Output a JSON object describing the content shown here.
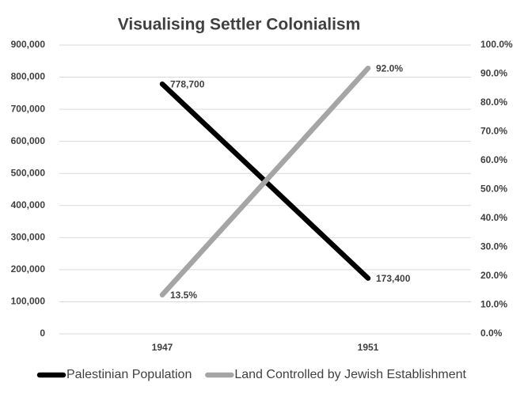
{
  "chart_data": {
    "type": "line",
    "title": "Visualising Settler Colonialism",
    "categories": [
      "1947",
      "1951"
    ],
    "series": [
      {
        "name": "Palestinian Population",
        "color": "#000000",
        "values": [
          778700,
          173400
        ],
        "value_labels": [
          "778,700",
          "173,400"
        ]
      },
      {
        "name": "Land Controlled by Jewish Establishment",
        "color": "#a5a5a5",
        "axis": "y2",
        "values": [
          13.5,
          92.0
        ],
        "value_labels": [
          "13.5%",
          "92.0%"
        ]
      }
    ],
    "ylim": [
      0,
      900000
    ],
    "yticks": [
      0,
      {
        "value": 100000,
        "label": "100,000"
      },
      {
        "value": 200000,
        "label": "200,000"
      },
      {
        "value": 300000,
        "label": "300,000"
      },
      {
        "value": 400000,
        "label": "400,000"
      },
      {
        "value": 500000,
        "label": "500,000"
      },
      {
        "value": 600000,
        "label": "600,000"
      },
      {
        "value": 700000,
        "label": "700,000"
      },
      {
        "value": 800000,
        "label": "800,000"
      },
      {
        "value": 900000,
        "label": "900,000"
      }
    ],
    "y2lim": [
      0,
      100
    ],
    "y2ticks": [
      {
        "value": 0,
        "label": "0.0%"
      },
      {
        "value": 10,
        "label": "10.0%"
      },
      {
        "value": 20,
        "label": "20.0%"
      },
      {
        "value": 30,
        "label": "30.0%"
      },
      {
        "value": 40,
        "label": "40.0%"
      },
      {
        "value": 50,
        "label": "50.0%"
      },
      {
        "value": 60,
        "label": "60.0%"
      },
      {
        "value": 70,
        "label": "70.0%"
      },
      {
        "value": 80,
        "label": "80.0%"
      },
      {
        "value": 90,
        "label": "90.0%"
      },
      {
        "value": 100,
        "label": "100.0%"
      }
    ],
    "grid": true,
    "legend": "bottom"
  }
}
